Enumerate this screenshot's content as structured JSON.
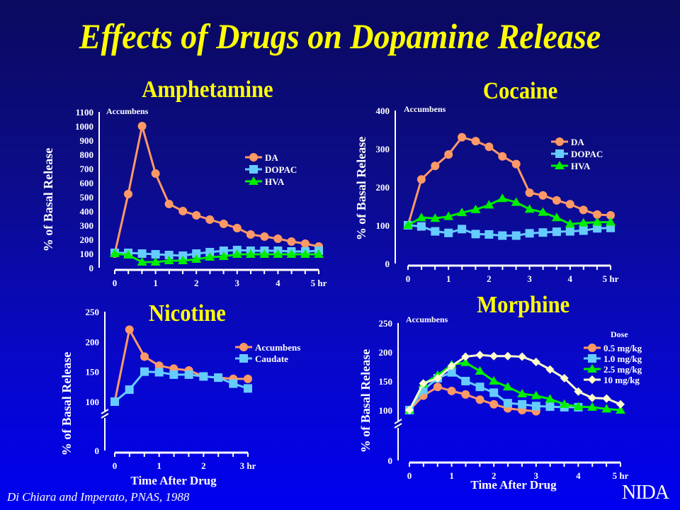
{
  "title": "Effects of Drugs on Dopamine Release",
  "citation": "Di Chiara and Imperato, PNAS, 1988",
  "logo": "NIDA",
  "colors": {
    "orange": "#ff9966",
    "blue": "#66ccff",
    "green": "#00ee00",
    "yellow_white": "#ffffcc",
    "title": "#ffff00"
  },
  "chart_data": [
    {
      "type": "line",
      "title": "Amphetamine",
      "annotation": "Accumbens",
      "xlabel": "",
      "ylabel": "% of Basal Release",
      "xticks": [
        "0",
        "1",
        "2",
        "3",
        "4",
        "5 hr"
      ],
      "ylim": [
        0,
        1100
      ],
      "yticks": [
        0,
        100,
        200,
        300,
        400,
        500,
        600,
        700,
        800,
        900,
        1000,
        1100
      ],
      "x": [
        0,
        0.33,
        0.67,
        1,
        1.33,
        1.67,
        2,
        2.33,
        2.67,
        3,
        3.33,
        3.67,
        4,
        4.33,
        4.67,
        5
      ],
      "series": [
        {
          "name": "DA",
          "marker": "circle",
          "values": [
            100,
            520,
            1000,
            665,
            450,
            400,
            370,
            340,
            310,
            280,
            235,
            220,
            205,
            185,
            170,
            150
          ]
        },
        {
          "name": "DOPAC",
          "marker": "square",
          "values": [
            105,
            105,
            100,
            95,
            90,
            85,
            100,
            110,
            120,
            125,
            120,
            120,
            120,
            115,
            115,
            120
          ]
        },
        {
          "name": "HVA",
          "marker": "triangle",
          "values": [
            100,
            90,
            40,
            40,
            50,
            50,
            60,
            75,
            80,
            95,
            95,
            95,
            95,
            95,
            95,
            95
          ]
        }
      ]
    },
    {
      "type": "line",
      "title": "Cocaine",
      "annotation": "Accumbens",
      "xlabel": "",
      "ylabel": "% of Basal Release",
      "xticks": [
        "0",
        "1",
        "2",
        "3",
        "4",
        "5 hr"
      ],
      "ylim": [
        0,
        400
      ],
      "yticks": [
        0,
        100,
        200,
        300,
        400
      ],
      "x": [
        0,
        0.33,
        0.67,
        1,
        1.33,
        1.67,
        2,
        2.33,
        2.67,
        3,
        3.33,
        3.67,
        4,
        4.33,
        4.67,
        5
      ],
      "series": [
        {
          "name": "DA",
          "marker": "circle",
          "values": [
            100,
            220,
            255,
            285,
            330,
            320,
            305,
            280,
            260,
            185,
            178,
            165,
            155,
            140,
            128,
            126
          ]
        },
        {
          "name": "DOPAC",
          "marker": "square",
          "values": [
            100,
            97,
            84,
            80,
            90,
            77,
            76,
            73,
            73,
            79,
            81,
            83,
            84,
            86,
            92,
            93
          ]
        },
        {
          "name": "HVA",
          "marker": "triangle",
          "values": [
            100,
            120,
            118,
            123,
            133,
            141,
            153,
            170,
            160,
            142,
            134,
            120,
            103,
            106,
            108,
            108
          ]
        }
      ]
    },
    {
      "type": "line",
      "title": "Nicotine",
      "annotation": "",
      "xlabel": "Time After Drug",
      "ylabel": "% of Basal Release",
      "xticks": [
        "0",
        "1",
        "2",
        "3 hr"
      ],
      "ylim": [
        0,
        250
      ],
      "yticks": [
        0,
        100,
        150,
        200,
        250
      ],
      "axis_break": true,
      "x": [
        0,
        0.33,
        0.67,
        1,
        1.33,
        1.67,
        2,
        2.33,
        2.67,
        3
      ],
      "series": [
        {
          "name": "Accumbens",
          "marker": "circle",
          "values": [
            100,
            220,
            175,
            160,
            155,
            152,
            142,
            140,
            138,
            138
          ]
        },
        {
          "name": "Caudate",
          "marker": "square",
          "values": [
            100,
            120,
            150,
            149,
            145,
            145,
            142,
            140,
            130,
            122
          ]
        }
      ]
    },
    {
      "type": "line",
      "title": "Morphine",
      "annotation": "Accumbens",
      "legend_title": "Dose",
      "xlabel": "Time After Drug",
      "ylabel": "% of Basal Release",
      "xticks": [
        "0",
        "1",
        "2",
        "3",
        "4",
        "5 hr"
      ],
      "ylim": [
        0,
        250
      ],
      "yticks": [
        0,
        100,
        150,
        200,
        250
      ],
      "axis_break": true,
      "x": [
        0,
        0.33,
        0.67,
        1,
        1.33,
        1.67,
        2,
        2.33,
        2.67,
        3,
        3.33,
        3.67,
        4,
        4.33,
        4.67,
        5
      ],
      "series": [
        {
          "name": "0.5 mg/kg",
          "marker": "circle",
          "values": [
            100,
            125,
            140,
            133,
            127,
            118,
            110,
            103,
            100,
            98,
            null,
            null,
            null,
            null,
            null,
            null
          ]
        },
        {
          "name": "1.0 mg/kg",
          "marker": "square",
          "values": [
            100,
            135,
            155,
            165,
            150,
            140,
            130,
            112,
            110,
            107,
            106,
            105,
            105,
            null,
            null,
            null
          ]
        },
        {
          "name": "2.5 mg/kg",
          "marker": "triangle",
          "values": [
            100,
            145,
            160,
            178,
            182,
            167,
            150,
            140,
            128,
            125,
            119,
            110,
            106,
            105,
            102,
            100
          ]
        },
        {
          "name": "10 mg/kg",
          "marker": "diamond",
          "values": [
            100,
            146,
            155,
            176,
            192,
            195,
            193,
            193,
            192,
            183,
            170,
            155,
            132,
            121,
            120,
            110
          ]
        }
      ]
    }
  ]
}
